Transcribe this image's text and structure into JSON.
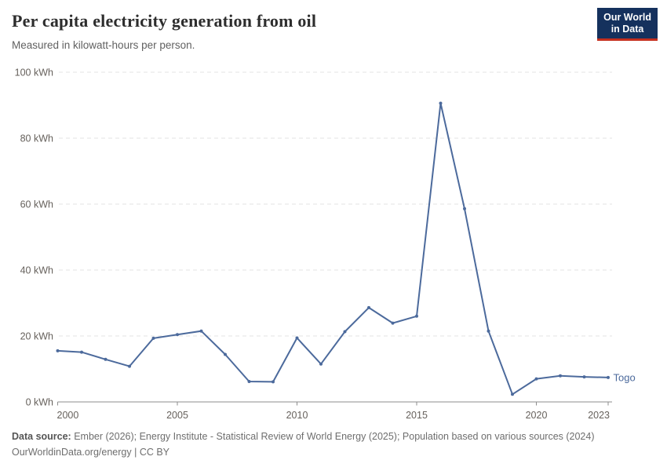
{
  "header": {
    "logo": {
      "line1": "Our World",
      "line2": "in Data"
    }
  },
  "chart_data": {
    "type": "line",
    "title": "Per capita electricity generation from oil",
    "subtitle": "Measured in kilowatt-hours per person.",
    "unit": "kWh",
    "x": [
      2000,
      2001,
      2002,
      2003,
      2004,
      2005,
      2006,
      2007,
      2008,
      2009,
      2010,
      2011,
      2012,
      2013,
      2014,
      2015,
      2016,
      2017,
      2018,
      2019,
      2020,
      2021,
      2022,
      2023
    ],
    "series": [
      {
        "name": "Togo",
        "color": "#4c6a9c",
        "values": [
          15.5,
          15.1,
          12.9,
          10.8,
          19.3,
          20.4,
          21.5,
          14.4,
          6.2,
          6.1,
          19.4,
          11.5,
          21.3,
          28.6,
          23.9,
          26.0,
          90.6,
          58.6,
          21.5,
          2.3,
          7.0,
          7.9,
          7.6,
          7.4
        ]
      }
    ],
    "xlim": [
      2000,
      2023
    ],
    "ylim": [
      0,
      100
    ],
    "yticks": [
      {
        "value": 0,
        "label": "0 kWh"
      },
      {
        "value": 20,
        "label": "20 kWh"
      },
      {
        "value": 40,
        "label": "40 kWh"
      },
      {
        "value": 60,
        "label": "60 kWh"
      },
      {
        "value": 80,
        "label": "80 kWh"
      },
      {
        "value": 100,
        "label": "100 kWh"
      }
    ],
    "xticks": [
      {
        "value": 2000,
        "label": "2000"
      },
      {
        "value": 2005,
        "label": "2005"
      },
      {
        "value": 2010,
        "label": "2010"
      },
      {
        "value": 2015,
        "label": "2015"
      },
      {
        "value": 2020,
        "label": "2020"
      },
      {
        "value": 2023,
        "label": "2023"
      }
    ],
    "grid": "horizontal-dashed",
    "legend_position": "end-of-line-label"
  },
  "footer": {
    "source_label": "Data source:",
    "source_text": " Ember (2026); Energy Institute - Statistical Review of World Energy (2025); Population based on various sources (2024)",
    "link": "OurWorldinData.org/energy",
    "license": " | CC BY"
  },
  "colors": {
    "line": "#4c6a9c",
    "grid": "#e3e3e3",
    "axis": "#8c8c8c",
    "logo_bg": "#15315d",
    "logo_accent": "#c5301f"
  }
}
